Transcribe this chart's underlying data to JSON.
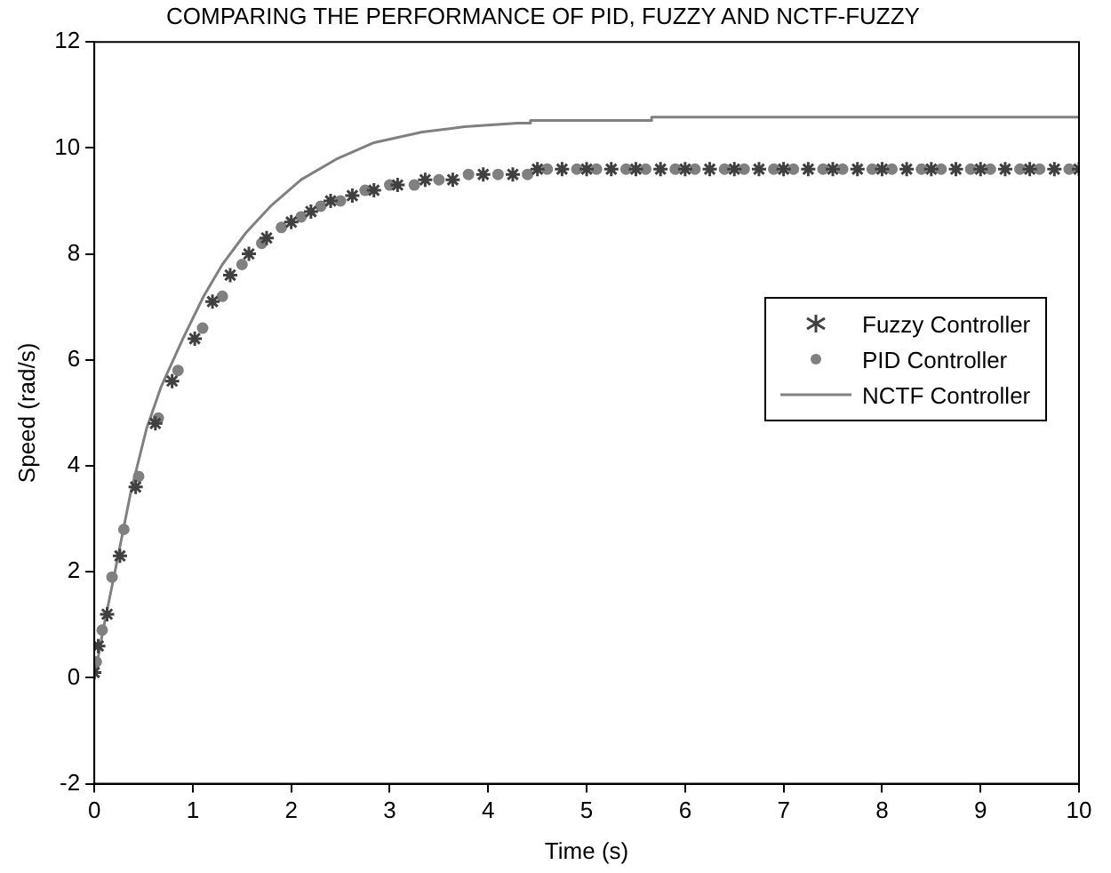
{
  "chart_data": {
    "type": "line",
    "title": "COMPARING THE PERFORMANCE OF PID, FUZZY AND NCTF-FUZZY",
    "xlabel": "Time (s)",
    "ylabel": "Speed (rad/s)",
    "xlim": [
      0,
      10
    ],
    "ylim": [
      -2,
      12
    ],
    "xticks": [
      0,
      1,
      2,
      3,
      4,
      5,
      6,
      7,
      8,
      9,
      10
    ],
    "yticks": [
      -2,
      0,
      2,
      4,
      6,
      8,
      10,
      12
    ],
    "grid": false,
    "legend": "right",
    "series": [
      {
        "name": "Fuzzy Controller",
        "type": "scatter",
        "marker": "cross",
        "color": "#404040",
        "x": [
          0,
          0.04,
          0.13,
          0.26,
          0.42,
          0.62,
          0.79,
          1.02,
          1.2,
          1.38,
          1.57,
          1.75,
          2.0,
          2.2,
          2.4,
          2.62,
          2.84,
          3.08,
          3.36,
          3.64,
          3.95,
          4.25,
          4.5,
          4.75,
          5.0,
          5.25,
          5.5,
          5.75,
          6.0,
          6.25,
          6.5,
          6.75,
          7.0,
          7.25,
          7.5,
          7.75,
          8.0,
          8.25,
          8.5,
          8.75,
          9.0,
          9.25,
          9.5,
          9.75,
          10.0
        ],
        "values": [
          0.1,
          0.6,
          1.2,
          2.3,
          3.6,
          4.8,
          5.6,
          6.4,
          7.1,
          7.6,
          8.0,
          8.3,
          8.6,
          8.8,
          9.0,
          9.1,
          9.2,
          9.3,
          9.4,
          9.4,
          9.5,
          9.5,
          9.6,
          9.6,
          9.6,
          9.6,
          9.6,
          9.6,
          9.6,
          9.6,
          9.6,
          9.6,
          9.6,
          9.6,
          9.6,
          9.6,
          9.6,
          9.6,
          9.6,
          9.6,
          9.6,
          9.6,
          9.6,
          9.6,
          9.6
        ]
      },
      {
        "name": "PID Controller",
        "type": "scatter",
        "marker": "circle",
        "color": "#808080",
        "x": [
          0.02,
          0.08,
          0.18,
          0.3,
          0.45,
          0.65,
          0.85,
          1.1,
          1.3,
          1.5,
          1.7,
          1.9,
          2.1,
          2.3,
          2.5,
          2.75,
          3.0,
          3.25,
          3.5,
          3.8,
          4.1,
          4.4,
          4.6,
          4.9,
          5.1,
          5.4,
          5.6,
          5.9,
          6.1,
          6.4,
          6.6,
          6.9,
          7.1,
          7.4,
          7.6,
          7.9,
          8.1,
          8.4,
          8.6,
          8.9,
          9.1,
          9.4,
          9.6,
          9.9
        ],
        "values": [
          0.3,
          0.9,
          1.9,
          2.8,
          3.8,
          4.9,
          5.8,
          6.6,
          7.2,
          7.8,
          8.2,
          8.5,
          8.7,
          8.9,
          9.0,
          9.2,
          9.3,
          9.3,
          9.4,
          9.5,
          9.5,
          9.5,
          9.6,
          9.6,
          9.6,
          9.6,
          9.6,
          9.6,
          9.6,
          9.6,
          9.6,
          9.6,
          9.6,
          9.6,
          9.6,
          9.6,
          9.6,
          9.6,
          9.6,
          9.6,
          9.6,
          9.6,
          9.6,
          9.6
        ]
      },
      {
        "name": "NCTF Controller",
        "type": "line",
        "marker": "none",
        "color": "#808080",
        "x": [
          0,
          0.1,
          0.22,
          0.37,
          0.53,
          0.68,
          0.9,
          1.11,
          1.3,
          1.54,
          1.79,
          2.1,
          2.47,
          2.84,
          3.33,
          3.76,
          4.3,
          4.43,
          4.43,
          5.66,
          5.66,
          10
        ],
        "values": [
          0,
          1.0,
          2.1,
          3.5,
          4.7,
          5.5,
          6.4,
          7.2,
          7.8,
          8.4,
          8.9,
          9.4,
          9.8,
          10.1,
          10.3,
          10.4,
          10.47,
          10.47,
          10.52,
          10.52,
          10.58,
          10.58
        ]
      }
    ]
  }
}
